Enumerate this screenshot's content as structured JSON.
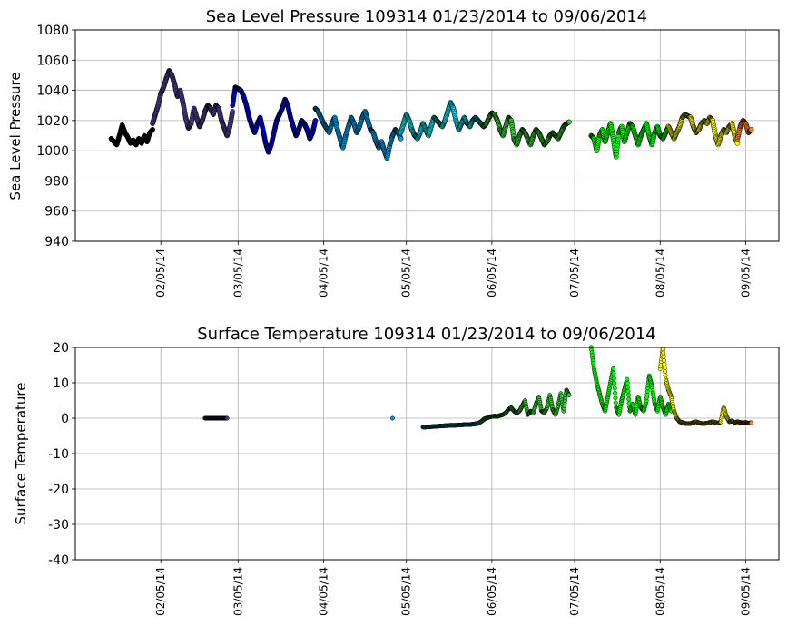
{
  "chart_data": [
    {
      "type": "scatter",
      "title": "Sea Level Pressure 109314  01/23/2014 to 09/06/2014",
      "xlabel": "",
      "ylabel": "Sea Level Pressure",
      "ylim": [
        940,
        1080
      ],
      "yticks": [
        940,
        960,
        980,
        1000,
        1020,
        1040,
        1060,
        1080
      ],
      "xlim": [
        "2014-01-05",
        "2014-09-17"
      ],
      "xticks": [
        {
          "date": "2014-02-05",
          "label": "02/05/14"
        },
        {
          "date": "2014-03-05",
          "label": "03/05/14"
        },
        {
          "date": "2014-04-05",
          "label": "04/05/14"
        },
        {
          "date": "2014-05-05",
          "label": "05/05/14"
        },
        {
          "date": "2014-06-05",
          "label": "06/05/14"
        },
        {
          "date": "2014-07-05",
          "label": "07/05/14"
        },
        {
          "date": "2014-08-05",
          "label": "08/05/14"
        },
        {
          "date": "2014-09-05",
          "label": "09/05/14"
        }
      ],
      "grid": true,
      "series": [
        {
          "name": "segment-1",
          "color": "#000000",
          "x": [
            18,
            19,
            20,
            21,
            22,
            23,
            24,
            25,
            26,
            27,
            28,
            29,
            30,
            31,
            32,
            33
          ],
          "y": [
            1008,
            1006,
            1004,
            1010,
            1017,
            1012,
            1009,
            1005,
            1007,
            1004,
            1008,
            1005,
            1010,
            1006,
            1012,
            1014
          ]
        },
        {
          "name": "segment-2",
          "color": "#483d8b",
          "x": [
            33,
            34,
            35,
            36,
            37,
            38,
            39,
            40,
            41,
            42,
            43,
            44,
            45,
            46,
            47,
            48,
            49,
            50,
            51,
            52,
            53,
            54,
            55,
            56,
            57,
            58,
            59,
            60,
            61,
            62
          ],
          "y": [
            1018,
            1024,
            1030,
            1038,
            1042,
            1048,
            1053,
            1050,
            1044,
            1036,
            1040,
            1032,
            1022,
            1015,
            1018,
            1028,
            1022,
            1016,
            1020,
            1026,
            1030,
            1028,
            1024,
            1030,
            1028,
            1020,
            1015,
            1010,
            1016,
            1026
          ]
        },
        {
          "name": "segment-3",
          "color": "#0000cd",
          "x": [
            62,
            63,
            64,
            65,
            66,
            67,
            68,
            69,
            70,
            71,
            72,
            73,
            74,
            75,
            76,
            77,
            78,
            79,
            80,
            81,
            82,
            83,
            84,
            85,
            86,
            87,
            88,
            89,
            90,
            91,
            92
          ],
          "y": [
            1030,
            1042,
            1041,
            1040,
            1036,
            1030,
            1022,
            1016,
            1012,
            1018,
            1022,
            1014,
            1005,
            999,
            1004,
            1012,
            1020,
            1024,
            1028,
            1034,
            1030,
            1022,
            1016,
            1010,
            1014,
            1020,
            1018,
            1014,
            1008,
            1012,
            1020
          ]
        },
        {
          "name": "segment-4",
          "color": "#0099e6",
          "x": [
            92,
            93,
            94,
            95,
            96,
            97,
            98,
            99,
            100,
            101,
            102,
            103,
            104,
            105,
            106,
            107,
            108,
            109,
            110,
            111,
            112,
            113,
            114,
            115,
            116,
            117,
            118,
            119,
            120,
            121,
            122,
            123
          ],
          "y": [
            1028,
            1026,
            1022,
            1018,
            1015,
            1012,
            1018,
            1022,
            1014,
            1008,
            1002,
            1010,
            1016,
            1022,
            1018,
            1012,
            1016,
            1022,
            1026,
            1020,
            1014,
            1012,
            1006,
            1002,
            1006,
            1000,
            995,
            1004,
            1010,
            1014,
            1012,
            1008
          ]
        },
        {
          "name": "segment-5",
          "color": "#00e5ee",
          "x": [
            123,
            124,
            125,
            126,
            127,
            128,
            129,
            130,
            131,
            132,
            133,
            134,
            135,
            136,
            137,
            138,
            139,
            140,
            141,
            142,
            143,
            144,
            145,
            146,
            147,
            148,
            149,
            150,
            151,
            152,
            153
          ],
          "y": [
            1012,
            1018,
            1024,
            1020,
            1014,
            1010,
            1008,
            1012,
            1018,
            1014,
            1010,
            1016,
            1022,
            1020,
            1018,
            1016,
            1020,
            1026,
            1032,
            1028,
            1020,
            1014,
            1018,
            1022,
            1018,
            1016,
            1020,
            1022,
            1020,
            1018,
            1016
          ]
        },
        {
          "name": "segment-6",
          "color": "#32cd32",
          "x": [
            153,
            154,
            155,
            156,
            157,
            158,
            159,
            160,
            161,
            162,
            163,
            164,
            165,
            166,
            167,
            168,
            169,
            170,
            171,
            172,
            173,
            174,
            175,
            176,
            177,
            178,
            179,
            180,
            181,
            182,
            183,
            184
          ],
          "y": [
            1016,
            1018,
            1022,
            1025,
            1024,
            1020,
            1014,
            1010,
            1016,
            1022,
            1020,
            1008,
            1004,
            1010,
            1014,
            1012,
            1008,
            1004,
            1010,
            1014,
            1012,
            1008,
            1004,
            1006,
            1010,
            1012,
            1010,
            1008,
            1012,
            1016,
            1018,
            1019
          ]
        },
        {
          "name": "segment-7",
          "color": "#00ff00",
          "x": [
            192,
            193,
            194,
            195,
            196,
            197,
            198,
            199,
            200,
            201,
            202,
            203,
            204,
            205,
            206,
            207,
            208,
            209,
            210,
            211,
            212,
            213,
            214,
            215,
            216,
            217,
            218,
            219,
            220
          ],
          "y": [
            1010,
            1008,
            1000,
            1010,
            1014,
            1006,
            1012,
            1018,
            1008,
            996,
            1012,
            1016,
            1006,
            1012,
            1018,
            1016,
            1010,
            1004,
            1010,
            1014,
            1018,
            1010,
            1004,
            1012,
            1016,
            1010,
            1008,
            1012,
            1016
          ]
        },
        {
          "name": "segment-8",
          "color": "#ffff00",
          "x": [
            220,
            221,
            222,
            223,
            224,
            225,
            226,
            227,
            228,
            229,
            230,
            231,
            232,
            233,
            234,
            235,
            236,
            237,
            238,
            239,
            240,
            241,
            242,
            243,
            244,
            245
          ],
          "y": [
            1016,
            1012,
            1008,
            1012,
            1016,
            1022,
            1024,
            1023,
            1022,
            1016,
            1012,
            1014,
            1018,
            1020,
            1018,
            1022,
            1020,
            1010,
            1004,
            1010,
            1014,
            1012,
            1016,
            1018,
            1010,
            1005
          ]
        },
        {
          "name": "segment-9",
          "color": "#ff7f24",
          "x": [
            245,
            246,
            247,
            248,
            249,
            250
          ],
          "y": [
            1008,
            1016,
            1020,
            1018,
            1012,
            1014
          ]
        }
      ]
    },
    {
      "type": "scatter",
      "title": "Surface Temperature 109314  01/23/2014 to 09/06/2014",
      "xlabel": "",
      "ylabel": "Surface Temperature",
      "ylim": [
        -40,
        20
      ],
      "yticks": [
        -40,
        -30,
        -20,
        -10,
        0,
        10,
        20
      ],
      "xlim": [
        "2014-01-05",
        "2014-09-17"
      ],
      "xticks": [
        {
          "date": "2014-02-05",
          "label": "02/05/14"
        },
        {
          "date": "2014-03-05",
          "label": "03/05/14"
        },
        {
          "date": "2014-04-05",
          "label": "04/05/14"
        },
        {
          "date": "2014-05-05",
          "label": "05/05/14"
        },
        {
          "date": "2014-06-05",
          "label": "06/05/14"
        },
        {
          "date": "2014-07-05",
          "label": "07/05/14"
        },
        {
          "date": "2014-08-05",
          "label": "08/05/14"
        },
        {
          "date": "2014-09-05",
          "label": "09/05/14"
        }
      ],
      "grid": true,
      "series": [
        {
          "name": "isolated-1",
          "color": "#483d8b",
          "x": [
            52,
            60
          ],
          "y": [
            0,
            0
          ]
        },
        {
          "name": "isolated-2",
          "color": "#0099e6",
          "x": [
            120
          ],
          "y": [
            0
          ]
        },
        {
          "name": "segment-5",
          "color": "#00e5ee",
          "x": [
            131,
            132,
            133,
            134,
            135,
            136,
            137,
            138,
            139,
            140,
            141,
            142,
            143,
            144,
            145,
            146,
            147,
            148,
            149,
            150,
            151,
            152,
            153
          ],
          "y": [
            -2.5,
            -2.5,
            -2.4,
            -2.4,
            -2.3,
            -2.3,
            -2.2,
            -2.2,
            -2.1,
            -2.1,
            -2.0,
            -2.0,
            -2.0,
            -1.9,
            -1.9,
            -1.8,
            -1.8,
            -1.8,
            -1.7,
            -1.6,
            -1.5,
            -1.0,
            -0.5
          ]
        },
        {
          "name": "segment-6",
          "color": "#32cd32",
          "x": [
            153,
            154,
            155,
            156,
            157,
            158,
            159,
            160,
            161,
            162,
            163,
            164,
            165,
            166,
            167,
            168,
            169,
            170,
            171,
            172,
            173,
            174,
            175,
            176,
            177,
            178,
            179,
            180,
            181,
            182,
            183,
            184
          ],
          "y": [
            -0.3,
            0.0,
            0.3,
            0.5,
            0.6,
            0.5,
            0.8,
            1.0,
            1.5,
            2.5,
            3.0,
            2.0,
            1.5,
            2.0,
            3.5,
            5.0,
            1.0,
            2.0,
            1.5,
            4.0,
            6.0,
            2.0,
            1.5,
            3.0,
            6.5,
            2.5,
            1.0,
            3.5,
            7.0,
            2.0,
            8.0,
            6.5
          ]
        },
        {
          "name": "segment-7",
          "color": "#00ff00",
          "x": [
            192,
            193,
            194,
            195,
            196,
            197,
            198,
            199,
            200,
            201,
            202,
            203,
            204,
            205,
            206,
            207,
            208,
            209,
            210,
            211,
            212,
            213,
            214,
            215,
            216,
            217,
            218,
            219,
            220,
            221
          ],
          "y": [
            20,
            14,
            10,
            7,
            4,
            2,
            6,
            10,
            14,
            3,
            1,
            5,
            8,
            11,
            2,
            4,
            1,
            6,
            3,
            2,
            5,
            12,
            9,
            4,
            2,
            6,
            3,
            1,
            4,
            2
          ]
        },
        {
          "name": "segment-8",
          "color": "#ffff00",
          "x": [
            217,
            218,
            219,
            220,
            221,
            222,
            223,
            224,
            225,
            226,
            227,
            228,
            229,
            230,
            231,
            232,
            233,
            234,
            235,
            236,
            237,
            238,
            239,
            240,
            241,
            242,
            243,
            244,
            245
          ],
          "y": [
            14,
            19.5,
            11,
            8,
            6,
            2,
            0,
            -1,
            -1.2,
            -1.5,
            -1.5,
            -1.5,
            -1.2,
            -1.0,
            -1.3,
            -1.5,
            -1.5,
            -1.4,
            -1.2,
            -1.0,
            -1.2,
            -1.4,
            -1.0,
            3.0,
            0.5,
            -1.0,
            -0.8,
            -1.2,
            -1.0
          ]
        },
        {
          "name": "segment-9",
          "color": "#ff7f24",
          "x": [
            245,
            246,
            247,
            248,
            249,
            250
          ],
          "y": [
            -1.0,
            -1.2,
            -1.3,
            -1.2,
            -1.4,
            -1.3
          ]
        }
      ]
    }
  ]
}
